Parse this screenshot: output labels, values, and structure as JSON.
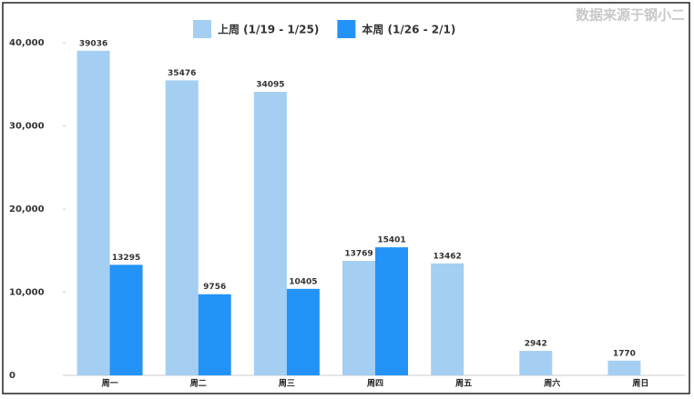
{
  "chart_data": {
    "type": "bar",
    "source": "数据来源于钢小二",
    "categories": [
      "周一",
      "周二",
      "周三",
      "周四",
      "周五",
      "周六",
      "周日"
    ],
    "series": [
      {
        "name": "上周 (1/19 - 1/25)",
        "color": "#a4cff2",
        "values": [
          39036,
          35476,
          34095,
          13769,
          13462,
          2942,
          1770
        ]
      },
      {
        "name": "本周 (1/26 - 2/1)",
        "color": "#2393f7",
        "values": [
          13295,
          9756,
          10405,
          15401,
          null,
          null,
          null
        ]
      }
    ],
    "ylim": [
      0,
      42000
    ],
    "yticks": [
      0,
      {
        "value": 10000,
        "label": "10,000"
      },
      {
        "value": 20000,
        "label": "20,000"
      },
      {
        "value": 30000,
        "label": "30,000"
      },
      {
        "value": 40000,
        "label": "40,000"
      }
    ],
    "legend": "top"
  }
}
